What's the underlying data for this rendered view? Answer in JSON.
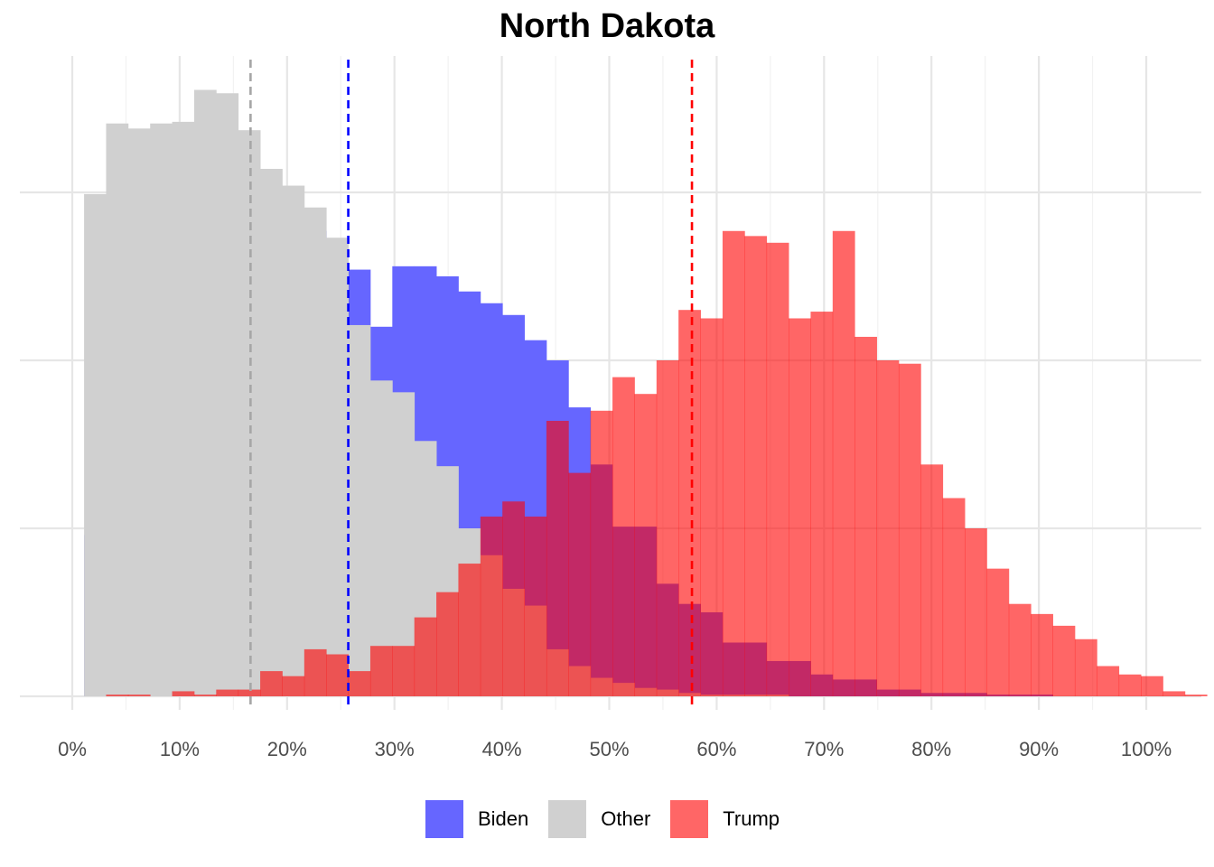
{
  "chart_data": {
    "type": "histogram",
    "title": "North Dakota",
    "xlabel": "",
    "ylabel": "",
    "xlim": [
      -0.05,
      1.05
    ],
    "ylim": [
      0,
      375
    ],
    "x_ticks": [
      0,
      0.1,
      0.2,
      0.3,
      0.4,
      0.5,
      0.6,
      0.7,
      0.8,
      0.9,
      1.0
    ],
    "x_tick_labels": [
      "0%",
      "10%",
      "20%",
      "30%",
      "40%",
      "50%",
      "60%",
      "70%",
      "80%",
      "90%",
      "100%"
    ],
    "y_gridlines": [
      0,
      100,
      200,
      300
    ],
    "grid": true,
    "legend_position": "bottom",
    "bin_width": 0.0205,
    "series": [
      {
        "name": "Biden",
        "color": "#6666FF",
        "opacity": 1.0,
        "bin_start": 0.011,
        "counts": [
          96,
          123,
          145,
          157,
          182,
          192,
          210,
          243,
          266,
          277,
          277,
          254,
          254,
          220,
          256,
          256,
          250,
          241,
          234,
          227,
          212,
          200,
          172,
          138,
          101,
          101,
          67,
          55,
          50,
          32,
          32,
          21,
          21,
          13,
          10,
          10,
          4,
          4,
          2,
          2,
          2,
          1,
          1,
          1,
          0,
          0,
          0,
          0,
          0,
          0,
          0,
          0,
          0,
          0,
          0,
          0,
          0
        ],
        "mean": 0.257
      },
      {
        "name": "Other",
        "color": "#D0D0D0",
        "opacity": 1.0,
        "bin_start": 0.011,
        "counts": [
          299,
          341,
          338,
          341,
          342,
          361,
          359,
          337,
          314,
          304,
          291,
          273,
          221,
          188,
          181,
          152,
          137,
          100,
          84,
          64,
          54,
          28,
          18,
          11,
          8,
          5,
          4,
          2,
          1,
          1,
          1,
          1,
          0,
          0,
          0,
          0,
          0,
          0,
          0,
          0,
          0,
          0,
          0,
          0,
          0,
          0,
          0,
          0,
          0,
          0,
          0,
          0,
          0,
          0,
          0,
          0,
          0
        ],
        "mean": 0.166
      },
      {
        "name": "Trump",
        "color": "#FF0000",
        "opacity": 0.6,
        "bin_start": 0.011,
        "counts": [
          0,
          1,
          1,
          0,
          3,
          1,
          4,
          4,
          15,
          12,
          28,
          25,
          15,
          30,
          30,
          47,
          62,
          79,
          107,
          116,
          107,
          164,
          133,
          170,
          190,
          180,
          200,
          230,
          225,
          277,
          274,
          270,
          225,
          229,
          277,
          214,
          200,
          198,
          138,
          118,
          100,
          76,
          55,
          49,
          42,
          34,
          18,
          13,
          12,
          3,
          1,
          0,
          0,
          0,
          0,
          0,
          0
        ],
        "mean": 0.577
      }
    ]
  },
  "legend": {
    "items": [
      {
        "label": "Biden",
        "color": "#6666FF"
      },
      {
        "label": "Other",
        "color": "#D0D0D0"
      },
      {
        "label": "Trump",
        "color": "#FF6666"
      }
    ]
  },
  "mean_lines": [
    {
      "series": "Other",
      "x": 0.166,
      "color": "#A6A6A6"
    },
    {
      "series": "Biden",
      "x": 0.257,
      "color": "#0000FF"
    },
    {
      "series": "Trump",
      "x": 0.577,
      "color": "#FF0000"
    }
  ]
}
